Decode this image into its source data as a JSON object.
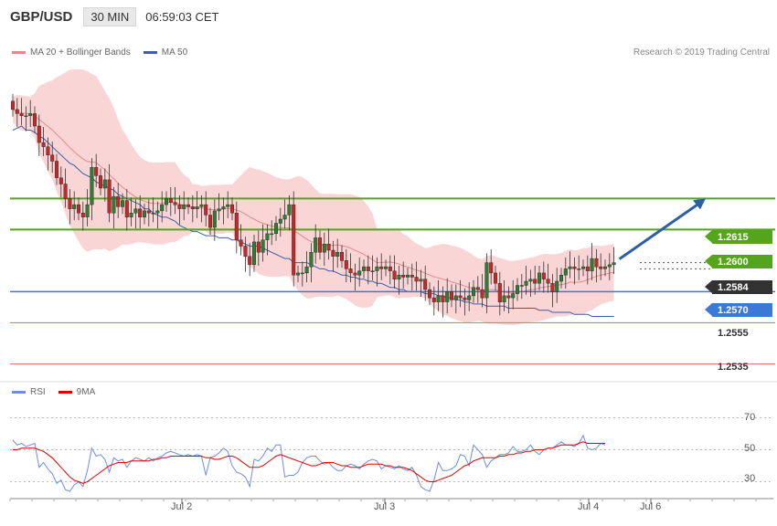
{
  "header": {
    "symbol": "GBP/USD",
    "timeframe": "30 MIN",
    "time": "06:59:03 CET"
  },
  "legend": {
    "bb_label": "MA 20 + Bollinger Bands",
    "ma50_label": "MA 50",
    "rsi_label": "RSI",
    "ma9_label": "9MA"
  },
  "credit": "Research © 2019 Trading Central",
  "colors": {
    "up": "#2e7d32",
    "down": "#c62828",
    "band": "#f8c7c7",
    "ma20": "#e88888",
    "ma50": "#3d5fa8",
    "level_green": "#55a51c",
    "level_blue": "#3a7ad6",
    "level_red": "#e06b6b",
    "last": "#333333",
    "rsi": "#6c8de0",
    "rsi_ma": "#e00000",
    "projection": "#2c5fa8"
  },
  "chart_data": [
    {
      "type": "candlestick",
      "title": "GBP/USD 30 MIN",
      "x_ticks": [
        "Jul 2",
        "Jul 3",
        "Jul 4",
        "Jul 6"
      ],
      "ylim": [
        1.253,
        1.268
      ],
      "closes": [
        1.2658,
        1.2656,
        1.2655,
        1.2655,
        1.2656,
        1.265,
        1.2642,
        1.264,
        1.2636,
        1.2633,
        1.2625,
        1.2622,
        1.2615,
        1.261,
        1.2612,
        1.2608,
        1.2606,
        1.2612,
        1.263,
        1.2626,
        1.262,
        1.2624,
        1.2608,
        1.2616,
        1.2611,
        1.2614,
        1.2606,
        1.2608,
        1.261,
        1.2606,
        1.2609,
        1.2608,
        1.2608,
        1.2609,
        1.2612,
        1.2615,
        1.2613,
        1.2612,
        1.261,
        1.2612,
        1.2611,
        1.261,
        1.2611,
        1.2612,
        1.2607,
        1.2601,
        1.2609,
        1.261,
        1.2611,
        1.2612,
        1.2608,
        1.2595,
        1.2592,
        1.2587,
        1.2583,
        1.2594,
        1.2589,
        1.2595,
        1.2598,
        1.2598,
        1.2603,
        1.2605,
        1.2607,
        1.2612,
        1.2578,
        1.2579,
        1.2579,
        1.2582,
        1.2589,
        1.2596,
        1.2589,
        1.2593,
        1.259,
        1.2587,
        1.2589,
        1.2585,
        1.2581,
        1.2579,
        1.2578,
        1.258,
        1.2582,
        1.258,
        1.258,
        1.2582,
        1.2581,
        1.2582,
        1.258,
        1.2576,
        1.2578,
        1.2577,
        1.2578,
        1.2577,
        1.2575,
        1.2576,
        1.2571,
        1.2567,
        1.2565,
        1.2568,
        1.2565,
        1.257,
        1.2566,
        1.2568,
        1.2567,
        1.2566,
        1.2568,
        1.2572,
        1.2571,
        1.2567,
        1.2584,
        1.2579,
        1.2574,
        1.2565,
        1.2568,
        1.2567,
        1.2569,
        1.2573,
        1.2573,
        1.2575,
        1.2576,
        1.2574,
        1.2579,
        1.2576,
        1.2574,
        1.257,
        1.2575,
        1.2578,
        1.2581,
        1.2582,
        1.2581,
        1.2581,
        1.2582,
        1.258,
        1.2586,
        1.2582,
        1.2581,
        1.2582,
        1.2583,
        1.2584
      ],
      "ma50": [
        1.2648,
        1.2649,
        1.265,
        1.2648,
        1.2648,
        1.2647,
        1.2645,
        1.2644,
        1.2642,
        1.264,
        1.2638,
        1.2636,
        1.2634,
        1.2632,
        1.2631,
        1.2629,
        1.2627,
        1.2626,
        1.2625,
        1.2623,
        1.2622,
        1.2621,
        1.262,
        1.2619,
        1.2617,
        1.2616,
        1.2615,
        1.2614,
        1.2613,
        1.2612,
        1.261,
        1.261,
        1.2608,
        1.2607,
        1.2606,
        1.2606,
        1.2605,
        1.2604,
        1.2602,
        1.2601,
        1.26,
        1.2599,
        1.2599,
        1.2598,
        1.2597,
        1.2597,
        1.2597,
        1.2596,
        1.2596,
        1.2596,
        1.2595,
        1.2595,
        1.2594,
        1.2593,
        1.2592,
        1.2592,
        1.2592,
        1.2591,
        1.259,
        1.2589,
        1.2588,
        1.2587,
        1.2586,
        1.2586,
        1.2584,
        1.2584,
        1.2584,
        1.2584,
        1.2583,
        1.2582,
        1.2581,
        1.2581,
        1.258,
        1.258,
        1.2579,
        1.2578,
        1.2578,
        1.2577,
        1.2577,
        1.2576,
        1.2576,
        1.2575,
        1.2575,
        1.2574,
        1.2574,
        1.2573,
        1.2572,
        1.2572,
        1.2571,
        1.2571,
        1.257,
        1.257,
        1.257,
        1.257,
        1.2569,
        1.2569,
        1.2569,
        1.2568,
        1.2568,
        1.2567,
        1.2567,
        1.2566,
        1.2566,
        1.2565,
        1.2565,
        1.2564,
        1.2564,
        1.2564,
        1.2563,
        1.2563,
        1.2563,
        1.2563,
        1.2563,
        1.2562,
        1.2562,
        1.2562,
        1.2562,
        1.2562,
        1.2562,
        1.2562,
        1.2561,
        1.2561,
        1.2561,
        1.256,
        1.256,
        1.256,
        1.256,
        1.256,
        1.2559,
        1.2559,
        1.2559,
        1.2559,
        1.2558,
        1.2558,
        1.2558,
        1.2558,
        1.2558,
        1.2558
      ],
      "levels": [
        1.2615,
        1.26,
        1.2584,
        1.257,
        1.2555,
        1.2535
      ],
      "level_kinds": [
        "resistance",
        "resistance",
        "last",
        "pivot",
        "support",
        "support"
      ],
      "projection_target": 1.2615
    },
    {
      "type": "line",
      "title": "RSI",
      "ylim": [
        20,
        80
      ],
      "y_ticks": [
        70,
        50,
        30
      ],
      "rsi": [
        56,
        53,
        54,
        52,
        53,
        54,
        39,
        42,
        38,
        35,
        29,
        31,
        25,
        24,
        28,
        30,
        27,
        37,
        51,
        46,
        47,
        44,
        36,
        45,
        43,
        44,
        39,
        43,
        45,
        44,
        43,
        45,
        43,
        45,
        46,
        48,
        49,
        48,
        47,
        46,
        47,
        46,
        47,
        46,
        34,
        45,
        46,
        48,
        51,
        49,
        40,
        36,
        35,
        33,
        27,
        44,
        43,
        46,
        51,
        49,
        53,
        53,
        33,
        34,
        34,
        36,
        42,
        45,
        46,
        46,
        43,
        41,
        42,
        39,
        37,
        37,
        40,
        41,
        40,
        38,
        41,
        43,
        44,
        43,
        38,
        40,
        39,
        38,
        40,
        38,
        37,
        39,
        34,
        27,
        25,
        24,
        31,
        42,
        37,
        37,
        38,
        40,
        47,
        46,
        40,
        53,
        50,
        47,
        39,
        43,
        45,
        47,
        47,
        48,
        52,
        49,
        49,
        50,
        53,
        49,
        47,
        50,
        51,
        51,
        53,
        55,
        53,
        53,
        52,
        54,
        59,
        51,
        50,
        51,
        54,
        53
      ],
      "ma9": [
        50,
        50,
        51,
        51,
        51,
        51,
        50,
        49,
        47,
        45,
        42,
        39,
        36,
        33,
        31,
        30,
        29,
        30,
        32,
        34,
        36,
        38,
        40,
        41,
        42,
        42,
        42,
        43,
        43,
        43,
        43,
        43,
        44,
        44,
        45,
        45,
        46,
        46,
        46,
        46,
        46,
        46,
        46,
        46,
        45,
        45,
        44,
        44,
        45,
        46,
        46,
        45,
        43,
        41,
        39,
        39,
        39,
        40,
        42,
        44,
        46,
        47,
        46,
        45,
        44,
        43,
        42,
        41,
        40,
        40,
        41,
        42,
        42,
        42,
        41,
        40,
        40,
        39,
        39,
        39,
        40,
        41,
        41,
        41,
        41,
        40,
        40,
        39,
        39,
        39,
        38,
        37,
        35,
        33,
        31,
        30,
        30,
        31,
        32,
        33,
        34,
        36,
        38,
        40,
        41,
        43,
        44,
        45,
        45,
        45,
        45,
        46,
        46,
        47,
        47,
        48,
        48,
        49,
        49,
        50,
        50,
        50,
        51,
        51,
        52,
        53,
        53,
        53,
        53,
        54,
        55,
        54,
        54,
        54,
        54,
        54
      ]
    }
  ]
}
